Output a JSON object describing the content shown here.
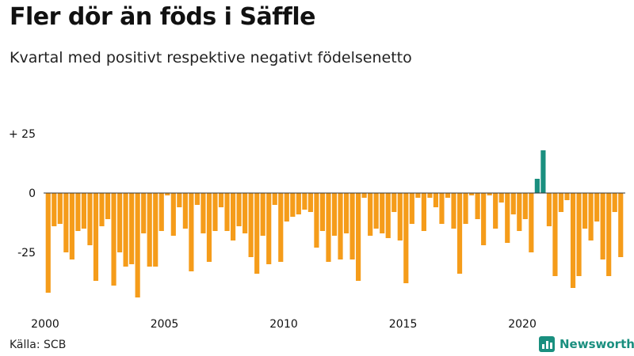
{
  "header": {
    "title": "Fler dör än föds i Säffle",
    "subtitle": "Kvartal med positivt respektive negativt födelsenetto"
  },
  "footer": {
    "source": "Källa: SCB",
    "brand": "Newsworthy"
  },
  "colors": {
    "negative": "#f59c1a",
    "positive": "#1a8f7f",
    "axis": "#333333",
    "text": "#111111"
  },
  "chart_data": {
    "type": "bar",
    "title": "Fler dör än föds i Säffle",
    "subtitle": "Kvartal med positivt respektive negativt födelsenetto",
    "xlabel": "",
    "ylabel": "",
    "ylim": [
      -45,
      25
    ],
    "yticks": [
      {
        "value": 25,
        "label": "+ 25"
      },
      {
        "value": 0,
        "label": "0"
      },
      {
        "value": -25,
        "label": "-25"
      }
    ],
    "x_tick_labels": [
      {
        "year": 2000,
        "label": "2000"
      },
      {
        "year": 2005,
        "label": "2005"
      },
      {
        "year": 2010,
        "label": "2010"
      },
      {
        "year": 2015,
        "label": "2015"
      },
      {
        "year": 2020,
        "label": "2020"
      }
    ],
    "start_year": 2000,
    "periods_per_year": 4,
    "values": [
      -42,
      -14,
      -13,
      -25,
      -28,
      -16,
      -15,
      -22,
      -37,
      -14,
      -11,
      -39,
      -25,
      -31,
      -30,
      -44,
      -17,
      -31,
      -31,
      -16,
      -1,
      -18,
      -6,
      -15,
      -33,
      -5,
      -17,
      -29,
      -16,
      -6,
      -16,
      -20,
      -14,
      -17,
      -27,
      -34,
      -18,
      -30,
      -5,
      -29,
      -12,
      -10,
      -9,
      -7,
      -8,
      -23,
      -16,
      -29,
      -18,
      -28,
      -17,
      -28,
      -37,
      -2,
      -18,
      -15,
      -17,
      -19,
      -8,
      -20,
      -38,
      -13,
      -2,
      -16,
      -2,
      -6,
      -13,
      -2,
      -15,
      -34,
      -13,
      -1,
      -11,
      -22,
      -1,
      -15,
      -4,
      -21,
      -9,
      -16,
      -11,
      -25,
      6,
      18,
      -14,
      -35,
      -8,
      -3,
      -40,
      -35,
      -15,
      -20,
      -12,
      -28,
      -35,
      -8,
      -27
    ]
  }
}
